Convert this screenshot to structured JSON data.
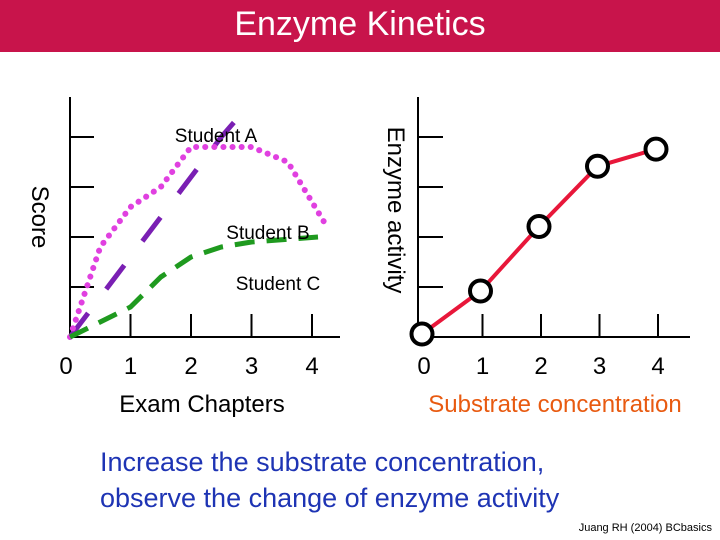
{
  "slide": {
    "title": "Enzyme Kinetics",
    "caption_lines": [
      "Increase the substrate concentration,",
      "observe the change of enzyme activity"
    ],
    "credit": "Juang RH (2004) BCbasics",
    "colors": {
      "title_bg": "#c8144b",
      "caption": "#1e34b4",
      "student_a": "#7a1fb3",
      "student_b": "#e040e0",
      "student_c": "#1f9a1f",
      "enzyme_line": "#e8173a",
      "substrate_label": "#e85a10"
    }
  },
  "chart_data": [
    {
      "type": "line",
      "xlabel": "Exam Chapters",
      "ylabel": "Score",
      "x_ticks": [
        "0",
        "1",
        "2",
        "3",
        "4"
      ],
      "xlim": [
        0,
        4.5
      ],
      "ylim": [
        0,
        5
      ],
      "series": [
        {
          "name": "Student A",
          "style": "long-dash",
          "points": [
            [
              0,
              0
            ],
            [
              0.5,
              0.8
            ],
            [
              1,
              1.6
            ],
            [
              1.5,
              2.4
            ],
            [
              2,
              3.2
            ],
            [
              2.5,
              4.0
            ],
            [
              3,
              4.7
            ]
          ]
        },
        {
          "name": "Student B",
          "style": "dotted",
          "points": [
            [
              0,
              0
            ],
            [
              0.5,
              1.8
            ],
            [
              1,
              2.6
            ],
            [
              1.5,
              3.0
            ],
            [
              2,
              3.8
            ],
            [
              2.5,
              3.8
            ],
            [
              3,
              3.8
            ],
            [
              3.6,
              3.5
            ],
            [
              4.2,
              2.3
            ]
          ]
        },
        {
          "name": "Student C",
          "style": "dashed",
          "points": [
            [
              0,
              0
            ],
            [
              1,
              0.6
            ],
            [
              1.5,
              1.2
            ],
            [
              2,
              1.6
            ],
            [
              2.5,
              1.8
            ],
            [
              3,
              1.9
            ],
            [
              4.1,
              2.0
            ]
          ]
        }
      ]
    },
    {
      "type": "line",
      "xlabel": "Substrate concentration",
      "ylabel": "Enzyme activity",
      "x_ticks": [
        "0",
        "1",
        "2",
        "3",
        "4"
      ],
      "xlim": [
        0,
        4.3
      ],
      "ylim": [
        0,
        5
      ],
      "series": [
        {
          "name": "",
          "markers": "circle",
          "points": [
            [
              0,
              0
            ],
            [
              1,
              1.0
            ],
            [
              2,
              2.5
            ],
            [
              3,
              3.9
            ],
            [
              4,
              4.3
            ]
          ]
        }
      ]
    }
  ]
}
